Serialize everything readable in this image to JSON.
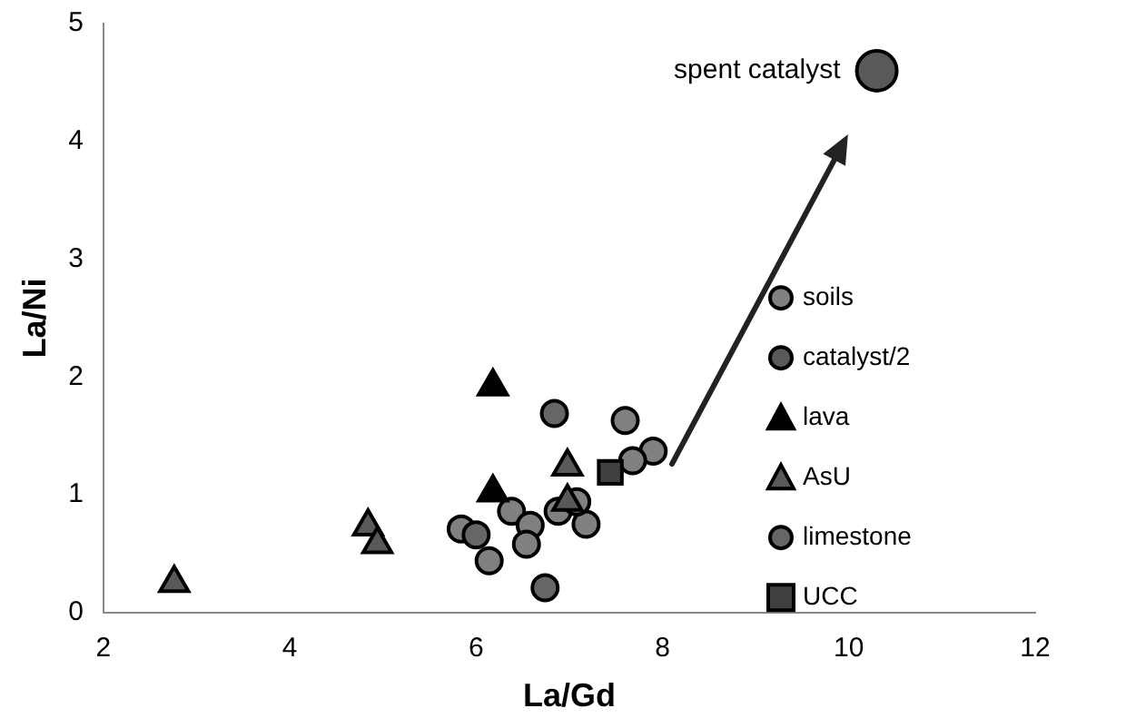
{
  "chart_data": {
    "type": "scatter",
    "xlabel": "La/Gd",
    "ylabel": "La/Ni",
    "xlim": [
      2,
      12
    ],
    "xticks": [
      2,
      4,
      6,
      8,
      10,
      12
    ],
    "ylim": [
      0,
      5
    ],
    "yticks": [
      0,
      1,
      2,
      3,
      4,
      5
    ],
    "grid": false,
    "legend": "right",
    "annotations": [
      {
        "text": "spent catalyst",
        "x": 10.3,
        "y": 4.6
      }
    ],
    "series": [
      {
        "name": "soils",
        "color": "#808080",
        "marker": "circle",
        "x": [
          5.84,
          6.14,
          6.38,
          6.58,
          6.54,
          6.88,
          7.18,
          7.6,
          7.9,
          7.68,
          7.08
        ],
        "values": [
          0.71,
          0.44,
          0.86,
          0.74,
          0.58,
          0.86,
          0.75,
          1.63,
          1.37,
          1.29,
          0.94
        ]
      },
      {
        "name": "catalyst/2",
        "color": "#595959",
        "marker": "circle",
        "x": [
          10.3
        ],
        "values": [
          4.6
        ]
      },
      {
        "name": "lava",
        "color": "#000000",
        "marker": "triangle",
        "x": [
          6.18,
          6.18
        ],
        "values": [
          1.92,
          1.02
        ]
      },
      {
        "name": "AsU",
        "color": "#595959",
        "marker": "triangle",
        "x": [
          4.84,
          4.94,
          2.76,
          6.98,
          6.98
        ],
        "values": [
          0.73,
          0.58,
          0.25,
          1.24,
          0.94
        ]
      },
      {
        "name": "limestone",
        "color": "#666666",
        "marker": "circle",
        "x": [
          6.84,
          6.0,
          6.74
        ],
        "values": [
          1.69,
          0.66,
          0.21
        ]
      },
      {
        "name": "UCC",
        "color": "#404040",
        "marker": "square",
        "x": [
          7.44
        ],
        "values": [
          1.19
        ]
      }
    ]
  }
}
